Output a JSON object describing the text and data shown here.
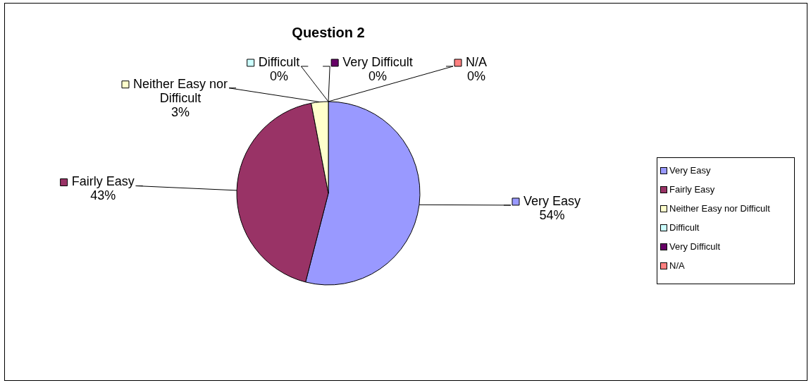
{
  "chart_data": {
    "type": "pie",
    "title": "Question 2",
    "categories": [
      "Very Easy",
      "Fairly Easy",
      "Neither Easy nor Difficult",
      "Difficult",
      "Very Difficult",
      "N/A"
    ],
    "values": [
      54,
      43,
      3,
      0,
      0,
      0
    ],
    "value_labels": [
      "54%",
      "43%",
      "3%",
      "0%",
      "0%",
      "0%"
    ],
    "colors": [
      "#9999ff",
      "#993366",
      "#ffffcc",
      "#ccffff",
      "#660066",
      "#ff8080"
    ],
    "legend": "right"
  }
}
